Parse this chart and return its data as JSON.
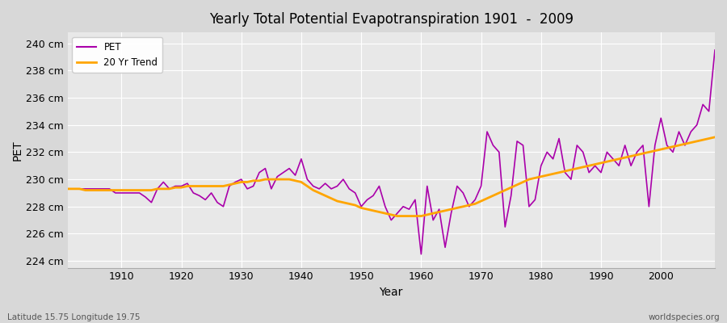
{
  "title": "Yearly Total Potential Evapotranspiration 1901  -  2009",
  "xlabel": "Year",
  "ylabel": "PET",
  "bottom_left": "Latitude 15.75 Longitude 19.75",
  "bottom_right": "worldspecies.org",
  "pet_color": "#aa00aa",
  "trend_color": "#FFA500",
  "bg_color": "#d8d8d8",
  "plot_bg_color": "#e8e8e8",
  "ylim": [
    223.5,
    240.8
  ],
  "ytick_labels": [
    "224 cm",
    "226 cm",
    "228 cm",
    "230 cm",
    "232 cm",
    "234 cm",
    "236 cm",
    "238 cm",
    "240 cm"
  ],
  "ytick_values": [
    224,
    226,
    228,
    230,
    232,
    234,
    236,
    238,
    240
  ],
  "years": [
    1901,
    1902,
    1903,
    1904,
    1905,
    1906,
    1907,
    1908,
    1909,
    1910,
    1911,
    1912,
    1913,
    1914,
    1915,
    1916,
    1917,
    1918,
    1919,
    1920,
    1921,
    1922,
    1923,
    1924,
    1925,
    1926,
    1927,
    1928,
    1929,
    1930,
    1931,
    1932,
    1933,
    1934,
    1935,
    1936,
    1937,
    1938,
    1939,
    1940,
    1941,
    1942,
    1943,
    1944,
    1945,
    1946,
    1947,
    1948,
    1949,
    1950,
    1951,
    1952,
    1953,
    1954,
    1955,
    1956,
    1957,
    1958,
    1959,
    1960,
    1961,
    1962,
    1963,
    1964,
    1965,
    1966,
    1967,
    1968,
    1969,
    1970,
    1971,
    1972,
    1973,
    1974,
    1975,
    1976,
    1977,
    1978,
    1979,
    1980,
    1981,
    1982,
    1983,
    1984,
    1985,
    1986,
    1987,
    1988,
    1989,
    1990,
    1991,
    1992,
    1993,
    1994,
    1995,
    1996,
    1997,
    1998,
    1999,
    2000,
    2001,
    2002,
    2003,
    2004,
    2005,
    2006,
    2007,
    2008,
    2009
  ],
  "pet_values": [
    229.3,
    229.3,
    229.3,
    229.3,
    229.3,
    229.3,
    229.3,
    229.3,
    229.0,
    229.0,
    229.0,
    229.0,
    229.0,
    228.7,
    228.3,
    229.3,
    229.8,
    229.3,
    229.5,
    229.5,
    229.7,
    229.0,
    228.8,
    228.5,
    229.0,
    228.3,
    228.0,
    229.5,
    229.8,
    230.0,
    229.3,
    229.5,
    230.5,
    230.8,
    229.3,
    230.2,
    230.5,
    230.8,
    230.3,
    231.5,
    230.0,
    229.5,
    229.3,
    229.7,
    229.3,
    229.5,
    230.0,
    229.3,
    229.0,
    228.0,
    228.5,
    228.8,
    229.5,
    228.0,
    227.0,
    227.5,
    228.0,
    227.8,
    228.5,
    224.5,
    229.5,
    227.0,
    227.8,
    225.0,
    227.5,
    229.5,
    229.0,
    228.0,
    228.5,
    229.5,
    233.5,
    232.5,
    232.0,
    226.5,
    228.8,
    232.8,
    232.5,
    228.0,
    228.5,
    231.0,
    232.0,
    231.5,
    233.0,
    230.5,
    230.0,
    232.5,
    232.0,
    230.5,
    231.0,
    230.5,
    232.0,
    231.5,
    231.0,
    232.5,
    231.0,
    232.0,
    232.5,
    228.0,
    232.5,
    234.5,
    232.5,
    232.0,
    233.5,
    232.5,
    233.5,
    234.0,
    235.5,
    235.0,
    239.5
  ],
  "trend_values": [
    229.3,
    229.3,
    229.3,
    229.2,
    229.2,
    229.2,
    229.2,
    229.2,
    229.2,
    229.2,
    229.2,
    229.2,
    229.2,
    229.2,
    229.2,
    229.3,
    229.3,
    229.3,
    229.4,
    229.4,
    229.5,
    229.5,
    229.5,
    229.5,
    229.5,
    229.5,
    229.5,
    229.6,
    229.7,
    229.8,
    229.8,
    229.9,
    229.9,
    230.0,
    230.0,
    230.0,
    230.0,
    230.0,
    229.9,
    229.8,
    229.5,
    229.2,
    229.0,
    228.8,
    228.6,
    228.4,
    228.3,
    228.2,
    228.1,
    227.9,
    227.8,
    227.7,
    227.6,
    227.5,
    227.4,
    227.3,
    227.3,
    227.3,
    227.3,
    227.3,
    227.4,
    227.5,
    227.6,
    227.7,
    227.8,
    227.9,
    228.0,
    228.1,
    228.2,
    228.4,
    228.6,
    228.8,
    229.0,
    229.2,
    229.4,
    229.6,
    229.8,
    230.0,
    230.1,
    230.2,
    230.3,
    230.4,
    230.5,
    230.6,
    230.7,
    230.8,
    230.9,
    231.0,
    231.1,
    231.2,
    231.3,
    231.4,
    231.5,
    231.6,
    231.7,
    231.8,
    231.9,
    232.0,
    232.1,
    232.2,
    232.3,
    232.4,
    232.5,
    232.6,
    232.7,
    232.8,
    232.9,
    233.0,
    233.1
  ],
  "legend_entries": [
    "PET",
    "20 Yr Trend"
  ]
}
